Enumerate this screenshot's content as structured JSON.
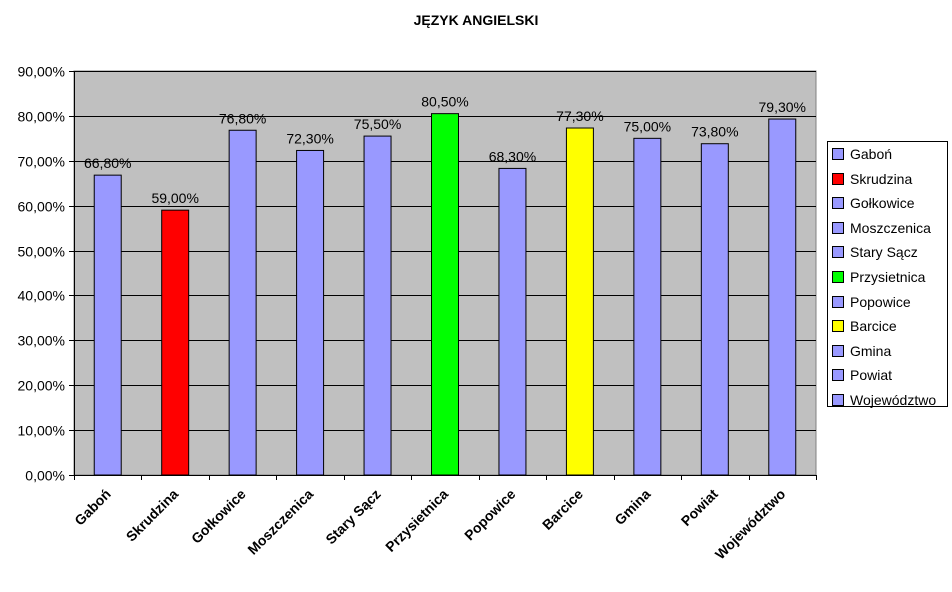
{
  "chart_data": {
    "type": "bar",
    "title": "JĘZYK ANGIELSKI",
    "categories": [
      "Gaboń",
      "Skrudzina",
      "Gołkowice",
      "Moszczenica",
      "Stary Sącz",
      "Przysietnica",
      "Popowice",
      "Barcice",
      "Gmina",
      "Powiat",
      "Województwo"
    ],
    "values": [
      66.8,
      59.0,
      76.8,
      72.3,
      75.5,
      80.5,
      68.3,
      77.3,
      75.0,
      73.8,
      79.3
    ],
    "data_labels": [
      "66,80%",
      "59,00%",
      "76,80%",
      "72,30%",
      "75,50%",
      "80,50%",
      "68,30%",
      "77,30%",
      "75,00%",
      "73,80%",
      "79,30%"
    ],
    "colors": [
      "#9999ff",
      "#ff0000",
      "#9999ff",
      "#9999ff",
      "#9999ff",
      "#00ff00",
      "#9999ff",
      "#ffff00",
      "#9999ff",
      "#9999ff",
      "#9999ff"
    ],
    "ylim": [
      0,
      90
    ],
    "yticks": [
      "0,00%",
      "10,00%",
      "20,00%",
      "30,00%",
      "40,00%",
      "50,00%",
      "60,00%",
      "70,00%",
      "80,00%",
      "90,00%"
    ],
    "grid": true,
    "plot_background": "#c0c0c0",
    "legend_position": "right"
  }
}
